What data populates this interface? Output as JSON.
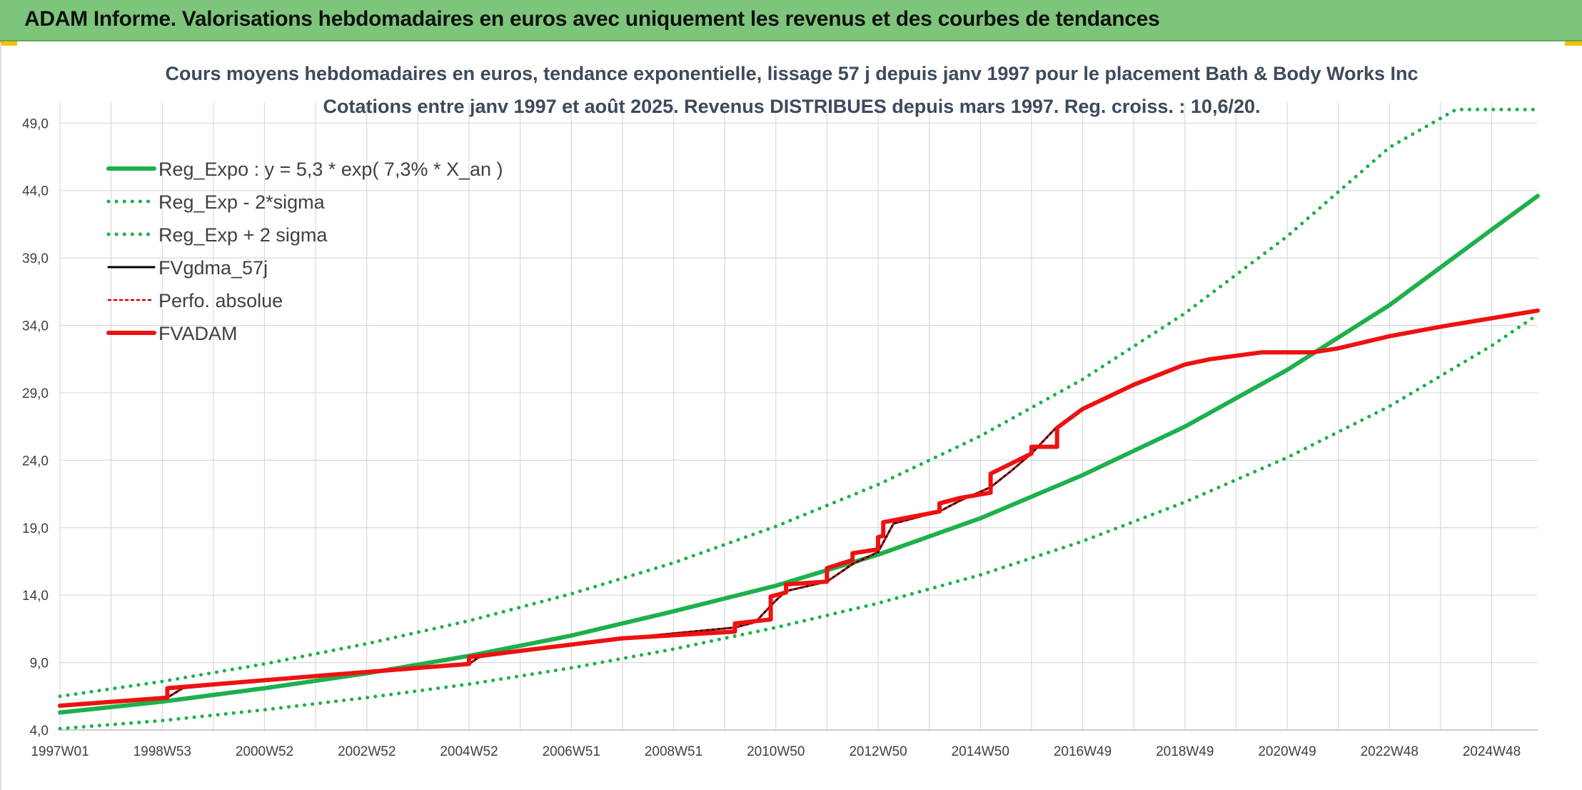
{
  "banner": {
    "title": "ADAM Informe. Valorisations hebdomadaires en euros avec uniquement les revenus et des courbes de tendances"
  },
  "colors": {
    "banner_bg": "#7dc57a",
    "trend_green": "#1db04b",
    "fvgdma_black": "#000000",
    "fvadam_red": "#ee1111",
    "perfo_red": "#cc0000",
    "grid": "#d9d9d9"
  },
  "chart_data": {
    "type": "line",
    "title": "Cours moyens hebdomadaires en euros, tendance exponentielle, lissage 57 j depuis janv 1997 pour le placement Bath & Body Works Inc",
    "subtitle": "Cotations entre janv 1997 et août 2025. Revenus DISTRIBUES depuis mars 1997. Reg. croiss. : 10,6/20.",
    "xlabel": "",
    "ylabel": "",
    "ylim": [
      4.0,
      50.5
    ],
    "xlim": [
      1997.0,
      2025.9
    ],
    "grid": true,
    "legend_position": "top-left",
    "x_ticks": [
      {
        "x": 1997.0,
        "label": "1997W01"
      },
      {
        "x": 1999.0,
        "label": "1998W53"
      },
      {
        "x": 2001.0,
        "label": "2000W52"
      },
      {
        "x": 2003.0,
        "label": "2002W52"
      },
      {
        "x": 2005.0,
        "label": "2004W52"
      },
      {
        "x": 2007.0,
        "label": "2006W51"
      },
      {
        "x": 2009.0,
        "label": "2008W51"
      },
      {
        "x": 2011.0,
        "label": "2010W50"
      },
      {
        "x": 2013.0,
        "label": "2012W50"
      },
      {
        "x": 2015.0,
        "label": "2014W50"
      },
      {
        "x": 2017.0,
        "label": "2016W49"
      },
      {
        "x": 2019.0,
        "label": "2018W49"
      },
      {
        "x": 2021.0,
        "label": "2020W49"
      },
      {
        "x": 2023.0,
        "label": "2022W48"
      },
      {
        "x": 2025.0,
        "label": "2024W48"
      }
    ],
    "y_ticks": [
      {
        "y": 4.0,
        "label": "4,0"
      },
      {
        "y": 9.0,
        "label": "9,0"
      },
      {
        "y": 14.0,
        "label": "14,0"
      },
      {
        "y": 19.0,
        "label": "19,0"
      },
      {
        "y": 24.0,
        "label": "24,0"
      },
      {
        "y": 29.0,
        "label": "29,0"
      },
      {
        "y": 34.0,
        "label": "34,0"
      },
      {
        "y": 39.0,
        "label": "39,0"
      },
      {
        "y": 44.0,
        "label": "44,0"
      },
      {
        "y": 49.0,
        "label": "49,0"
      }
    ],
    "series": [
      {
        "name": "Reg_Expo : y = 5,3 * exp( 7,3% *  X_an )",
        "style": "solid-thick",
        "color": "#1db04b",
        "x": [
          1997.0,
          1999.0,
          2001.0,
          2003.0,
          2005.0,
          2007.0,
          2009.0,
          2011.0,
          2013.0,
          2015.0,
          2017.0,
          2019.0,
          2021.0,
          2023.0,
          2025.0,
          2025.9
        ],
        "y": [
          5.3,
          6.1,
          7.1,
          8.2,
          9.5,
          11.0,
          12.8,
          14.7,
          17.0,
          19.7,
          22.9,
          26.5,
          30.7,
          35.5,
          41.1,
          43.6
        ]
      },
      {
        "name": "Reg_Exp - 2*sigma",
        "style": "dotted",
        "color": "#1db04b",
        "x": [
          1997.0,
          1999.0,
          2001.0,
          2003.0,
          2005.0,
          2007.0,
          2009.0,
          2011.0,
          2013.0,
          2015.0,
          2017.0,
          2019.0,
          2021.0,
          2023.0,
          2025.0,
          2025.9
        ],
        "y": [
          4.1,
          4.7,
          5.5,
          6.4,
          7.4,
          8.6,
          10.0,
          11.6,
          13.4,
          15.5,
          18.0,
          20.9,
          24.2,
          28.0,
          32.5,
          34.8
        ]
      },
      {
        "name": "Reg_Exp + 2 sigma",
        "style": "dotted",
        "color": "#1db04b",
        "x": [
          1997.0,
          1999.0,
          2001.0,
          2003.0,
          2005.0,
          2007.0,
          2009.0,
          2011.0,
          2013.0,
          2015.0,
          2017.0,
          2019.0,
          2021.0,
          2023.0,
          2024.3,
          2025.9
        ],
        "y": [
          6.5,
          7.6,
          8.9,
          10.4,
          12.1,
          14.1,
          16.4,
          19.1,
          22.2,
          25.8,
          30.0,
          34.9,
          40.6,
          47.2,
          50.0,
          50.0
        ]
      },
      {
        "name": "FVgdma_57j",
        "style": "solid",
        "color": "#000000",
        "x": [
          1997.0,
          1999.1,
          1999.4,
          2002.0,
          2004.0,
          2005.0,
          2005.2,
          2008.0,
          2010.2,
          2010.6,
          2011.0,
          2011.2,
          2012.0,
          2012.5,
          2013.0,
          2013.3,
          2014.2,
          2014.6,
          2015.2,
          2015.6,
          2016.0,
          2016.5,
          2017.0,
          2018.0,
          2019.0,
          2019.5,
          2020.5,
          2021.5,
          2022.0,
          2023.0,
          2024.0,
          2025.9
        ],
        "y": [
          5.8,
          6.4,
          7.1,
          8.0,
          8.6,
          8.9,
          9.4,
          10.8,
          11.6,
          12.0,
          13.6,
          14.3,
          15.0,
          16.3,
          17.2,
          19.3,
          20.2,
          21.0,
          22.0,
          23.2,
          24.5,
          26.5,
          27.8,
          29.6,
          31.1,
          31.5,
          32.0,
          32.0,
          32.3,
          33.2,
          33.9,
          35.1
        ]
      },
      {
        "name": "Perfo. absolue",
        "style": "dotted",
        "color": "#cc0000",
        "x": [
          1997.0,
          1999.1,
          1999.4,
          2002.0,
          2004.0,
          2005.0,
          2005.2,
          2008.0,
          2010.2,
          2010.6,
          2011.0,
          2011.2,
          2012.0,
          2012.5,
          2013.0,
          2013.3,
          2014.2,
          2014.6,
          2015.2,
          2015.6,
          2016.0,
          2016.5,
          2017.0,
          2018.0,
          2019.0,
          2019.5,
          2020.5,
          2021.5,
          2022.0,
          2023.0,
          2024.0,
          2025.9
        ],
        "y": [
          5.8,
          6.4,
          7.1,
          8.0,
          8.6,
          8.9,
          9.4,
          10.8,
          11.6,
          12.0,
          13.6,
          14.3,
          15.0,
          16.3,
          17.2,
          19.3,
          20.2,
          21.0,
          22.0,
          23.2,
          24.5,
          26.5,
          27.8,
          29.6,
          31.1,
          31.5,
          32.0,
          32.0,
          32.3,
          33.2,
          33.9,
          35.1
        ]
      },
      {
        "name": "FVADAM",
        "style": "solid-thick",
        "color": "#ee1111",
        "x": [
          1997.0,
          1999.1,
          1999.1,
          2002.0,
          2004.0,
          2005.0,
          2005.0,
          2008.0,
          2010.2,
          2010.2,
          2010.9,
          2010.9,
          2011.2,
          2011.2,
          2012.0,
          2012.0,
          2012.5,
          2012.5,
          2013.0,
          2013.0,
          2013.1,
          2013.1,
          2014.2,
          2014.2,
          2014.6,
          2014.6,
          2015.2,
          2015.2,
          2016.0,
          2016.0,
          2016.5,
          2016.5,
          2017.0,
          2018.0,
          2019.0,
          2019.5,
          2020.5,
          2021.5,
          2022.0,
          2023.0,
          2024.0,
          2025.9
        ],
        "y": [
          5.8,
          6.4,
          7.1,
          8.0,
          8.6,
          8.9,
          9.4,
          10.8,
          11.3,
          11.9,
          12.2,
          13.9,
          14.2,
          14.8,
          15.0,
          16.0,
          16.6,
          17.1,
          17.4,
          18.3,
          18.4,
          19.4,
          20.2,
          20.8,
          21.2,
          21.2,
          21.6,
          23.0,
          24.5,
          25.0,
          25.0,
          26.4,
          27.8,
          29.6,
          31.1,
          31.5,
          32.0,
          32.0,
          32.3,
          33.2,
          33.9,
          35.1
        ]
      }
    ]
  }
}
